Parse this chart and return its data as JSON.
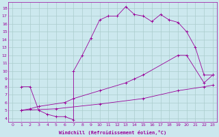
{
  "xlabel": "Windchill (Refroidissement éolien,°C)",
  "bg_color": "#cce8ee",
  "line_color": "#990099",
  "grid_color": "#aacccc",
  "xlim": [
    -0.5,
    23.5
  ],
  "ylim": [
    3.5,
    18.8
  ],
  "yticks": [
    4,
    5,
    6,
    7,
    8,
    9,
    10,
    11,
    12,
    13,
    14,
    15,
    16,
    17,
    18
  ],
  "xticks": [
    0,
    1,
    2,
    3,
    4,
    5,
    6,
    7,
    8,
    9,
    10,
    11,
    12,
    13,
    14,
    15,
    16,
    17,
    18,
    19,
    20,
    21,
    22,
    23
  ],
  "line1_x": [
    1,
    2,
    3,
    4,
    5,
    6,
    7,
    7,
    8,
    9,
    10,
    11,
    12,
    13,
    14,
    15,
    16,
    17,
    18,
    19,
    20,
    21,
    22,
    23
  ],
  "line1_y": [
    8.0,
    8.0,
    5.0,
    4.5,
    4.2,
    4.2,
    3.8,
    10.0,
    12.0,
    14.2,
    16.5,
    17.0,
    17.0,
    18.2,
    17.2,
    17.0,
    16.3,
    17.2,
    16.5,
    16.2,
    15.0,
    13.0,
    9.5,
    9.5
  ],
  "line2_x": [
    1,
    2,
    3,
    6,
    7,
    10,
    13,
    14,
    15,
    19,
    20,
    22,
    23
  ],
  "line2_y": [
    5.0,
    5.2,
    5.5,
    6.0,
    6.5,
    7.5,
    8.5,
    9.0,
    9.5,
    12.0,
    12.0,
    8.5,
    9.5
  ],
  "line3_x": [
    1,
    5,
    10,
    15,
    19,
    22,
    23
  ],
  "line3_y": [
    5.0,
    5.2,
    5.8,
    6.5,
    7.5,
    8.0,
    8.2
  ]
}
